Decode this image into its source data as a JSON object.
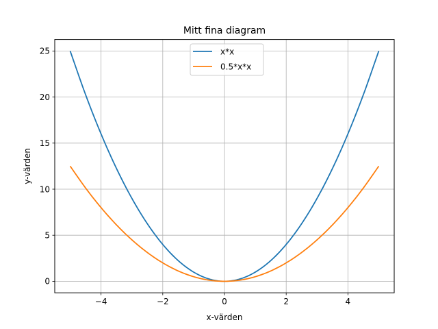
{
  "chart_data": {
    "type": "line",
    "title": "Mitt fina diagram",
    "xlabel": "x-värden",
    "ylabel": "y-värden",
    "xlim": [
      -5.5,
      5.5
    ],
    "ylim": [
      -1.25,
      26.25
    ],
    "x_ticks": [
      -4,
      -2,
      0,
      2,
      4
    ],
    "x_tick_labels": [
      "−4",
      "−2",
      "0",
      "2",
      "4"
    ],
    "y_ticks": [
      0,
      5,
      10,
      15,
      20,
      25
    ],
    "y_tick_labels": [
      "0",
      "5",
      "10",
      "15",
      "20",
      "25"
    ],
    "grid": true,
    "legend_position": "top-center",
    "x": [
      -5,
      -4.5,
      -4,
      -3.5,
      -3,
      -2.5,
      -2,
      -1.5,
      -1,
      -0.5,
      0,
      0.5,
      1,
      1.5,
      2,
      2.5,
      3,
      3.5,
      4,
      4.5,
      5
    ],
    "series": [
      {
        "name": "x*x",
        "color": "#1f77b4",
        "values": [
          25,
          20.25,
          16,
          12.25,
          9,
          6.25,
          4,
          2.25,
          1,
          0.25,
          0,
          0.25,
          1,
          2.25,
          4,
          6.25,
          9,
          12.25,
          16,
          20.25,
          25
        ]
      },
      {
        "name": "0.5*x*x",
        "color": "#ff7f0e",
        "values": [
          12.5,
          10.125,
          8,
          6.125,
          4.5,
          3.125,
          2,
          1.125,
          0.5,
          0.125,
          0,
          0.125,
          0.5,
          1.125,
          2,
          3.125,
          4.5,
          6.125,
          8,
          10.125,
          12.5
        ]
      }
    ]
  }
}
